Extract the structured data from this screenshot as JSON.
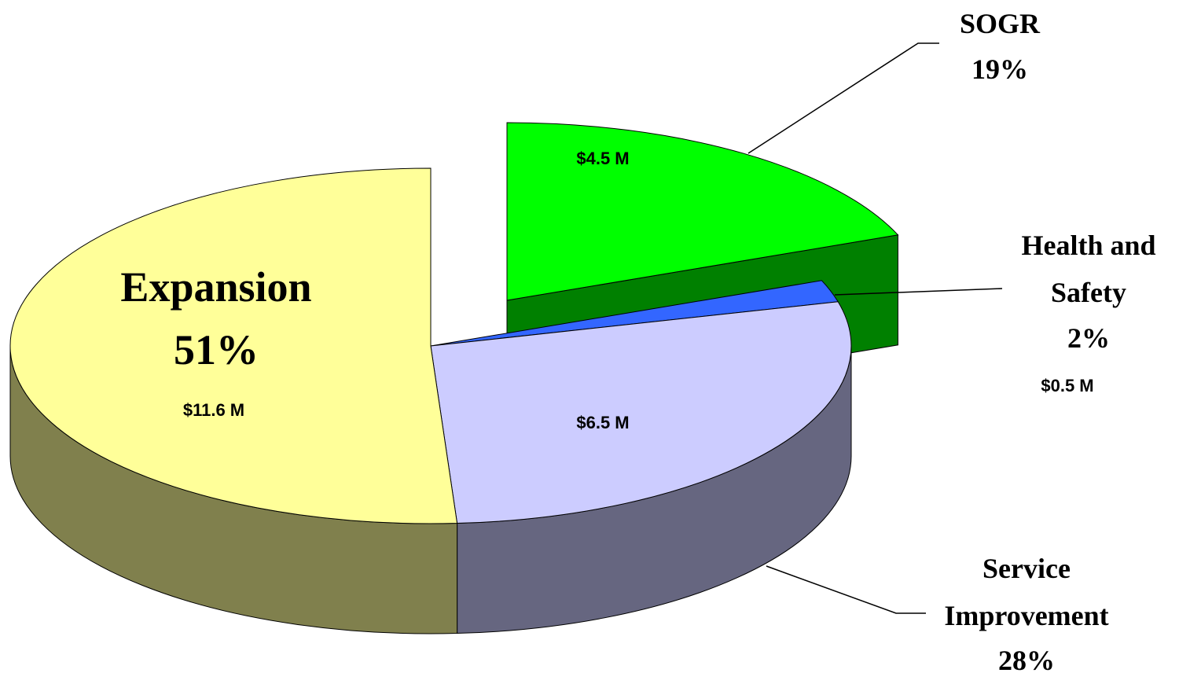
{
  "chart_data": {
    "type": "pie3d",
    "categories": [
      "SOGR",
      "Health and Safety",
      "Service Improvement",
      "Expansion"
    ],
    "values": [
      19,
      2,
      28,
      51
    ],
    "value_labels": [
      "19%",
      "2%",
      "28%",
      "51%"
    ],
    "amounts": [
      4.5,
      0.5,
      6.5,
      11.6
    ],
    "amount_labels": [
      "$4.5 M",
      "$0.5 M",
      "$6.5 M",
      "$11.6 M"
    ],
    "colors": [
      "#00ff00",
      "#3366ff",
      "#ccccff",
      "#ffff99"
    ],
    "explode": [
      true,
      false,
      false,
      false
    ]
  }
}
